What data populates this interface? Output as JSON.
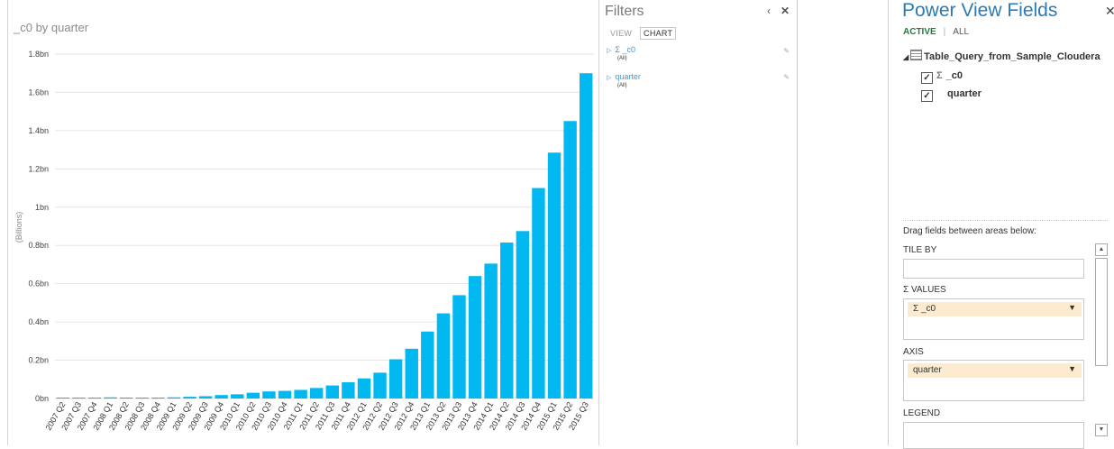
{
  "chart": {
    "title": "_c0 by quarter",
    "ylabel": "(Billions)"
  },
  "chart_data": {
    "type": "bar",
    "title": "_c0 by quarter",
    "ylabel": "(Billions)",
    "ylim": [
      0,
      1.8
    ],
    "yticks": [
      "0bn",
      "0.2bn",
      "0.4bn",
      "0.6bn",
      "0.8bn",
      "1bn",
      "1.2bn",
      "1.4bn",
      "1.6bn",
      "1.8bn"
    ],
    "categories": [
      "2007 Q2",
      "2007 Q3",
      "2007 Q4",
      "2008 Q1",
      "2008 Q2",
      "2008 Q3",
      "2008 Q4",
      "2009 Q1",
      "2009 Q2",
      "2009 Q3",
      "2009 Q4",
      "2010 Q1",
      "2010 Q2",
      "2010 Q3",
      "2010 Q4",
      "2011 Q1",
      "2011 Q2",
      "2011 Q3",
      "2011 Q4",
      "2012 Q1",
      "2012 Q2",
      "2012 Q3",
      "2012 Q4",
      "2013 Q1",
      "2013 Q2",
      "2013 Q3",
      "2013 Q4",
      "2014 Q1",
      "2014 Q2",
      "2014 Q3",
      "2014 Q4",
      "2015 Q1",
      "2015 Q2",
      "2015 Q3"
    ],
    "values": [
      0.002,
      0.003,
      0.004,
      0.006,
      0.004,
      0.003,
      0.004,
      0.006,
      0.009,
      0.012,
      0.018,
      0.022,
      0.03,
      0.037,
      0.04,
      0.045,
      0.055,
      0.068,
      0.085,
      0.105,
      0.135,
      0.205,
      0.26,
      0.35,
      0.445,
      0.54,
      0.64,
      0.705,
      0.815,
      0.875,
      1.1,
      1.285,
      1.45,
      1.7
    ],
    "color": "#01b8f1",
    "grid": true
  },
  "filters": {
    "title": "Filters",
    "collapse_icon": "chevron-left-icon",
    "close_icon": "close-icon",
    "tabs": [
      "VIEW",
      "CHART"
    ],
    "items": [
      {
        "label": "Σ _c0",
        "value": "(All)"
      },
      {
        "label": "quarter",
        "value": "(All)"
      }
    ]
  },
  "fields": {
    "title": "Power View Fields",
    "tabs": [
      "ACTIVE",
      "ALL"
    ],
    "table_name": "Table_Query_from_Sample_Cloudera",
    "items": [
      {
        "label": "_c0",
        "sigma": "Σ",
        "checked": "✓"
      },
      {
        "label": "quarter",
        "sigma": "",
        "checked": "✓"
      }
    ],
    "drag_hint": "Drag fields between areas below:",
    "areas": {
      "tile_by": "TILE BY",
      "values": "Σ VALUES",
      "values_field": "Σ _c0",
      "axis": "AXIS",
      "axis_field": "quarter",
      "legend": "LEGEND"
    }
  }
}
